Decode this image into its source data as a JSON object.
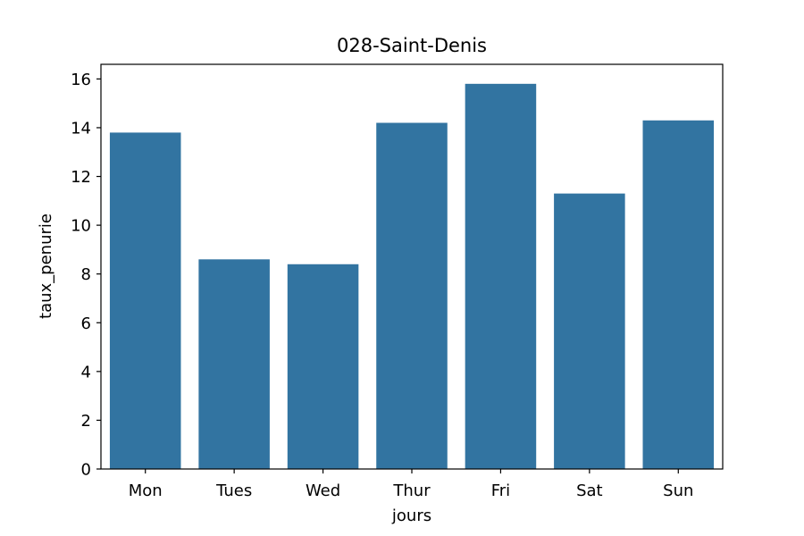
{
  "chart_data": {
    "type": "bar",
    "title": "028-Saint-Denis",
    "xlabel": "jours",
    "ylabel": "taux_penurie",
    "categories": [
      "Mon",
      "Tues",
      "Wed",
      "Thur",
      "Fri",
      "Sat",
      "Sun"
    ],
    "values": [
      13.8,
      8.6,
      8.4,
      14.2,
      15.8,
      11.3,
      14.3
    ],
    "ylim": [
      0,
      16.6
    ],
    "yticks": [
      0,
      2,
      4,
      6,
      8,
      10,
      12,
      14,
      16
    ],
    "grid": false,
    "legend": "none",
    "bar_color": "#3274a1"
  }
}
